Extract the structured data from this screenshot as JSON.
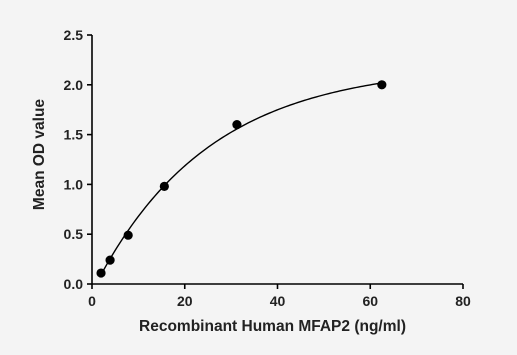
{
  "chart_data": {
    "type": "scatter",
    "xlabel": "Recombinant Human MFAP2 (ng/ml)",
    "ylabel": "Mean OD value",
    "xlim": [
      0,
      80
    ],
    "ylim": [
      0,
      2.5
    ],
    "x_ticks": [
      "0",
      "20",
      "40",
      "60",
      "80"
    ],
    "y_ticks": [
      "0.0",
      "0.5",
      "1.0",
      "1.5",
      "2.0",
      "2.5"
    ],
    "grid": false,
    "legend": "none",
    "series": [
      {
        "x": [
          1.95,
          3.9,
          7.8,
          15.6,
          31.25,
          62.5
        ],
        "y": [
          0.11,
          0.24,
          0.49,
          0.98,
          1.6,
          2.0
        ]
      }
    ],
    "fit_curve": true,
    "colors": {
      "background": "#f4f4f4",
      "marks": "#000000",
      "text": "#222222"
    }
  }
}
